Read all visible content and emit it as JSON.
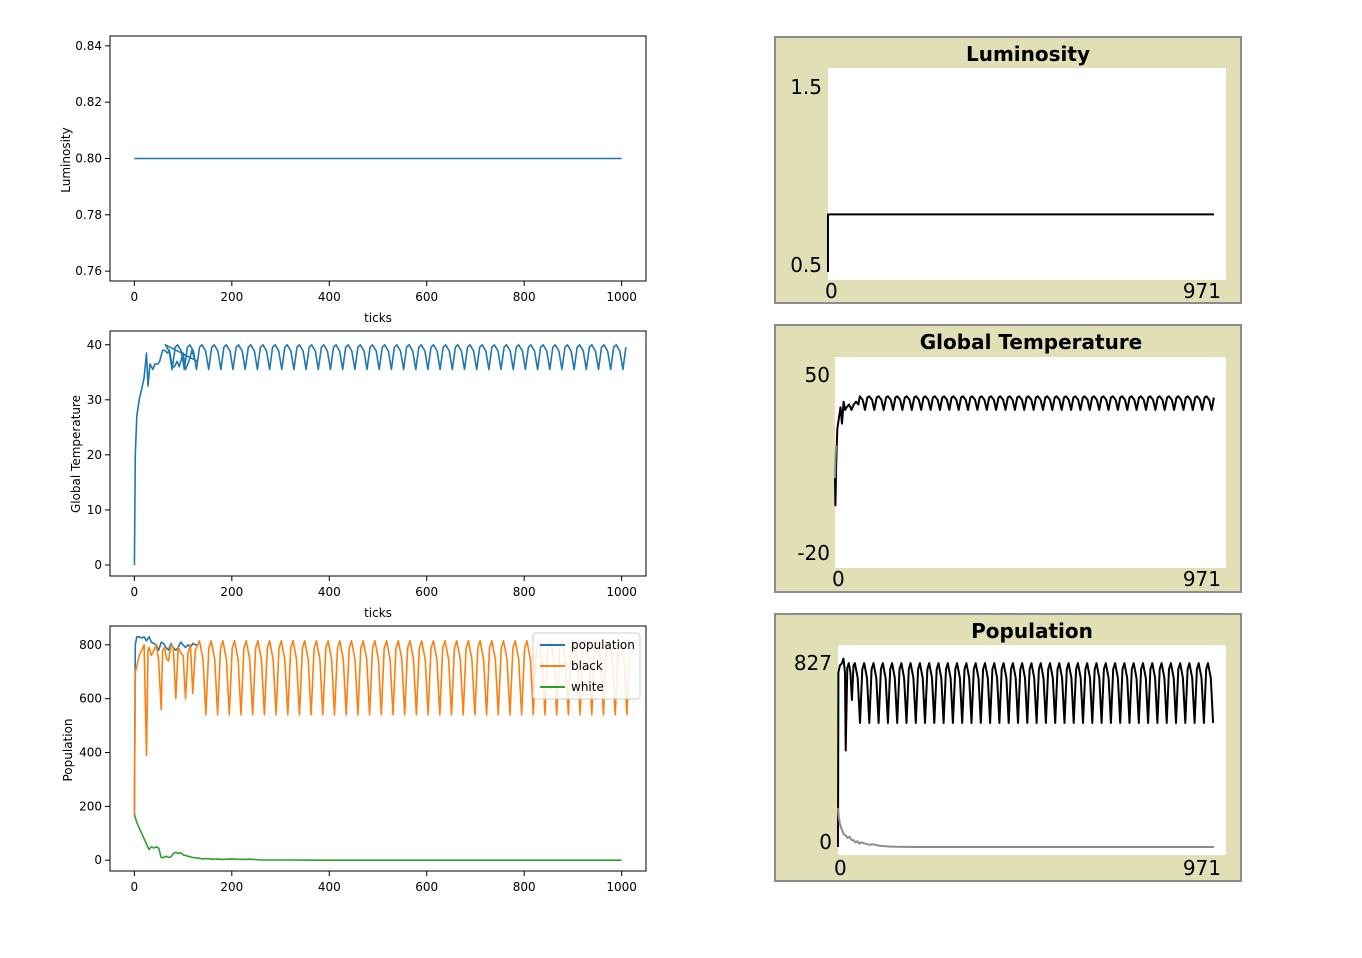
{
  "colors": {
    "population": "#1f77b4",
    "black": "#ff7f0e",
    "white": "#2ca02c",
    "netlogo_frame": "#e0dfb6",
    "netlogo_border": "#8c8c8c",
    "netlogo_main": "#000000",
    "netlogo_secondary": "#8c8c8c"
  },
  "chart_data": [
    {
      "type": "line",
      "title": "",
      "xlabel": "ticks",
      "ylabel": "Luminosity",
      "xlim": [
        -50,
        1050
      ],
      "ylim": [
        0.7565,
        0.8435
      ],
      "xticks": [
        "0",
        "200",
        "400",
        "600",
        "800",
        "1000"
      ],
      "yticks": [
        "0.76",
        "0.78",
        "0.80",
        "0.82",
        "0.84"
      ],
      "series": [
        {
          "x": [
            0,
            1000
          ],
          "y": [
            0.8,
            0.8
          ]
        }
      ]
    },
    {
      "type": "line",
      "title": "",
      "xlabel": "ticks",
      "ylabel": "Global Temperature",
      "xlim": [
        -50,
        1050
      ],
      "ylim": [
        -2,
        42.5
      ],
      "xticks": [
        "0",
        "200",
        "400",
        "600",
        "800",
        "1000"
      ],
      "yticks": [
        "0",
        "10",
        "20",
        "30",
        "40"
      ],
      "series": [
        {
          "oscillation": {
            "start": 60,
            "end": 1000,
            "period": 25,
            "high": 40,
            "low": 35.5
          },
          "x": [
            0,
            2,
            5,
            10,
            15,
            20,
            25,
            28,
            32,
            38,
            42,
            48,
            52,
            58,
            62,
            68,
            72,
            78,
            82,
            88,
            92,
            100,
            105,
            112,
            118,
            125,
            130
          ],
          "y": [
            0,
            20,
            27,
            30,
            32,
            34,
            38.5,
            32.5,
            36.5,
            35.5,
            36.5,
            36.5,
            37,
            39,
            39,
            38.5,
            39,
            36,
            36,
            37,
            36,
            38.5,
            35.5,
            37,
            39,
            37,
            37
          ]
        }
      ]
    },
    {
      "type": "line",
      "title": "",
      "xlabel": "",
      "ylabel": "Population",
      "xlim": [
        -50,
        1050
      ],
      "ylim": [
        -40,
        870
      ],
      "xticks": [
        "0",
        "200",
        "400",
        "600",
        "800",
        "1000"
      ],
      "yticks": [
        "0",
        "200",
        "400",
        "600",
        "800"
      ],
      "legend": "top-right",
      "series": [
        {
          "name": "population",
          "x": [
            0,
            2,
            5,
            10,
            15,
            20,
            25,
            30,
            35,
            40,
            45,
            50,
            55,
            60,
            65,
            70,
            75,
            80,
            85,
            90,
            95,
            100,
            105,
            110,
            115,
            120,
            125,
            130
          ],
          "y": [
            170,
            800,
            830,
            830,
            825,
            830,
            815,
            830,
            810,
            805,
            800,
            780,
            810,
            805,
            790,
            780,
            805,
            790,
            780,
            790,
            810,
            800,
            790,
            800,
            790,
            805,
            800,
            800
          ]
        },
        {
          "name": "black",
          "oscillation": {
            "start": 130,
            "end": 1000,
            "period": 24,
            "high": 815,
            "low": 540
          },
          "x": [
            0,
            2,
            5,
            10,
            15,
            20,
            25,
            28,
            30,
            35,
            40,
            45,
            50,
            55,
            58,
            62,
            66,
            70,
            75,
            80,
            85,
            90,
            95,
            100,
            105,
            110,
            115,
            120,
            125,
            130
          ],
          "y": [
            170,
            700,
            720,
            760,
            780,
            800,
            390,
            780,
            790,
            760,
            780,
            800,
            740,
            560,
            780,
            790,
            750,
            740,
            800,
            790,
            600,
            790,
            770,
            760,
            600,
            770,
            800,
            620,
            780,
            800
          ]
        },
        {
          "name": "white",
          "x": [
            0,
            5,
            10,
            15,
            20,
            25,
            30,
            35,
            40,
            45,
            50,
            55,
            60,
            65,
            70,
            75,
            80,
            85,
            90,
            95,
            100,
            110,
            120,
            130,
            140,
            150,
            160,
            170,
            180,
            200,
            220,
            240,
            260,
            300,
            400,
            600,
            800,
            1000
          ],
          "y": [
            170,
            140,
            120,
            100,
            80,
            60,
            40,
            50,
            45,
            50,
            45,
            10,
            10,
            15,
            10,
            12,
            25,
            30,
            25,
            28,
            20,
            15,
            10,
            8,
            5,
            6,
            4,
            5,
            3,
            5,
            3,
            4,
            1,
            1,
            0,
            0,
            0,
            0
          ]
        }
      ]
    },
    {
      "type": "line",
      "title": "Luminosity",
      "xlim": [
        0,
        971
      ],
      "ylim": [
        0.5,
        1.5
      ],
      "x_range_labels": [
        "0",
        "971"
      ],
      "y_range_labels": [
        "0.5",
        "1.5"
      ],
      "series": [
        {
          "x": [
            0,
            0,
            971
          ],
          "y": [
            0.5,
            0.8,
            0.8
          ]
        }
      ]
    },
    {
      "type": "line",
      "title": "Global Temperature",
      "xlim": [
        0,
        971
      ],
      "ylim": [
        -20,
        50
      ],
      "x_range_labels": [
        "0",
        "971"
      ],
      "y_range_labels": [
        "-20",
        "50"
      ],
      "series": [
        {
          "oscillation": {
            "start": 60,
            "end": 971,
            "period": 24,
            "high": 40,
            "low": 35
          },
          "x": [
            0,
            1,
            3,
            6,
            10,
            14,
            18,
            22,
            26,
            30,
            36,
            42,
            48,
            54,
            60
          ],
          "y": [
            10,
            0,
            15,
            28,
            32,
            36,
            30,
            38,
            35,
            36,
            37,
            35,
            37,
            38,
            37
          ]
        },
        {
          "x": [
            0,
            1,
            3
          ],
          "y": [
            10,
            17,
            22
          ],
          "color": "secondary"
        }
      ]
    },
    {
      "type": "line",
      "title": "Population",
      "xlim": [
        0,
        971
      ],
      "ylim": [
        0,
        827
      ],
      "x_range_labels": [
        "0",
        "971"
      ],
      "y_range_labels": [
        "0",
        "827"
      ],
      "series": [
        {
          "oscillation": {
            "start": 40,
            "end": 971,
            "period": 24,
            "high": 800,
            "low": 540
          },
          "x": [
            0,
            1,
            5,
            10,
            14,
            18,
            20,
            24,
            28,
            32,
            36,
            40
          ],
          "y": [
            0,
            760,
            790,
            800,
            820,
            760,
            420,
            780,
            800,
            760,
            640,
            790
          ]
        },
        {
          "x": [
            0,
            2,
            5,
            10,
            15,
            20,
            25,
            30,
            35,
            40,
            45,
            50,
            55,
            60,
            70,
            80,
            90,
            100,
            110,
            120,
            130,
            150,
            200,
            300,
            500,
            971
          ],
          "y": [
            170,
            130,
            100,
            75,
            55,
            50,
            40,
            45,
            30,
            30,
            20,
            25,
            15,
            20,
            15,
            10,
            12,
            8,
            5,
            4,
            2,
            1,
            0,
            0,
            0,
            0
          ],
          "color": "secondary"
        }
      ]
    }
  ]
}
